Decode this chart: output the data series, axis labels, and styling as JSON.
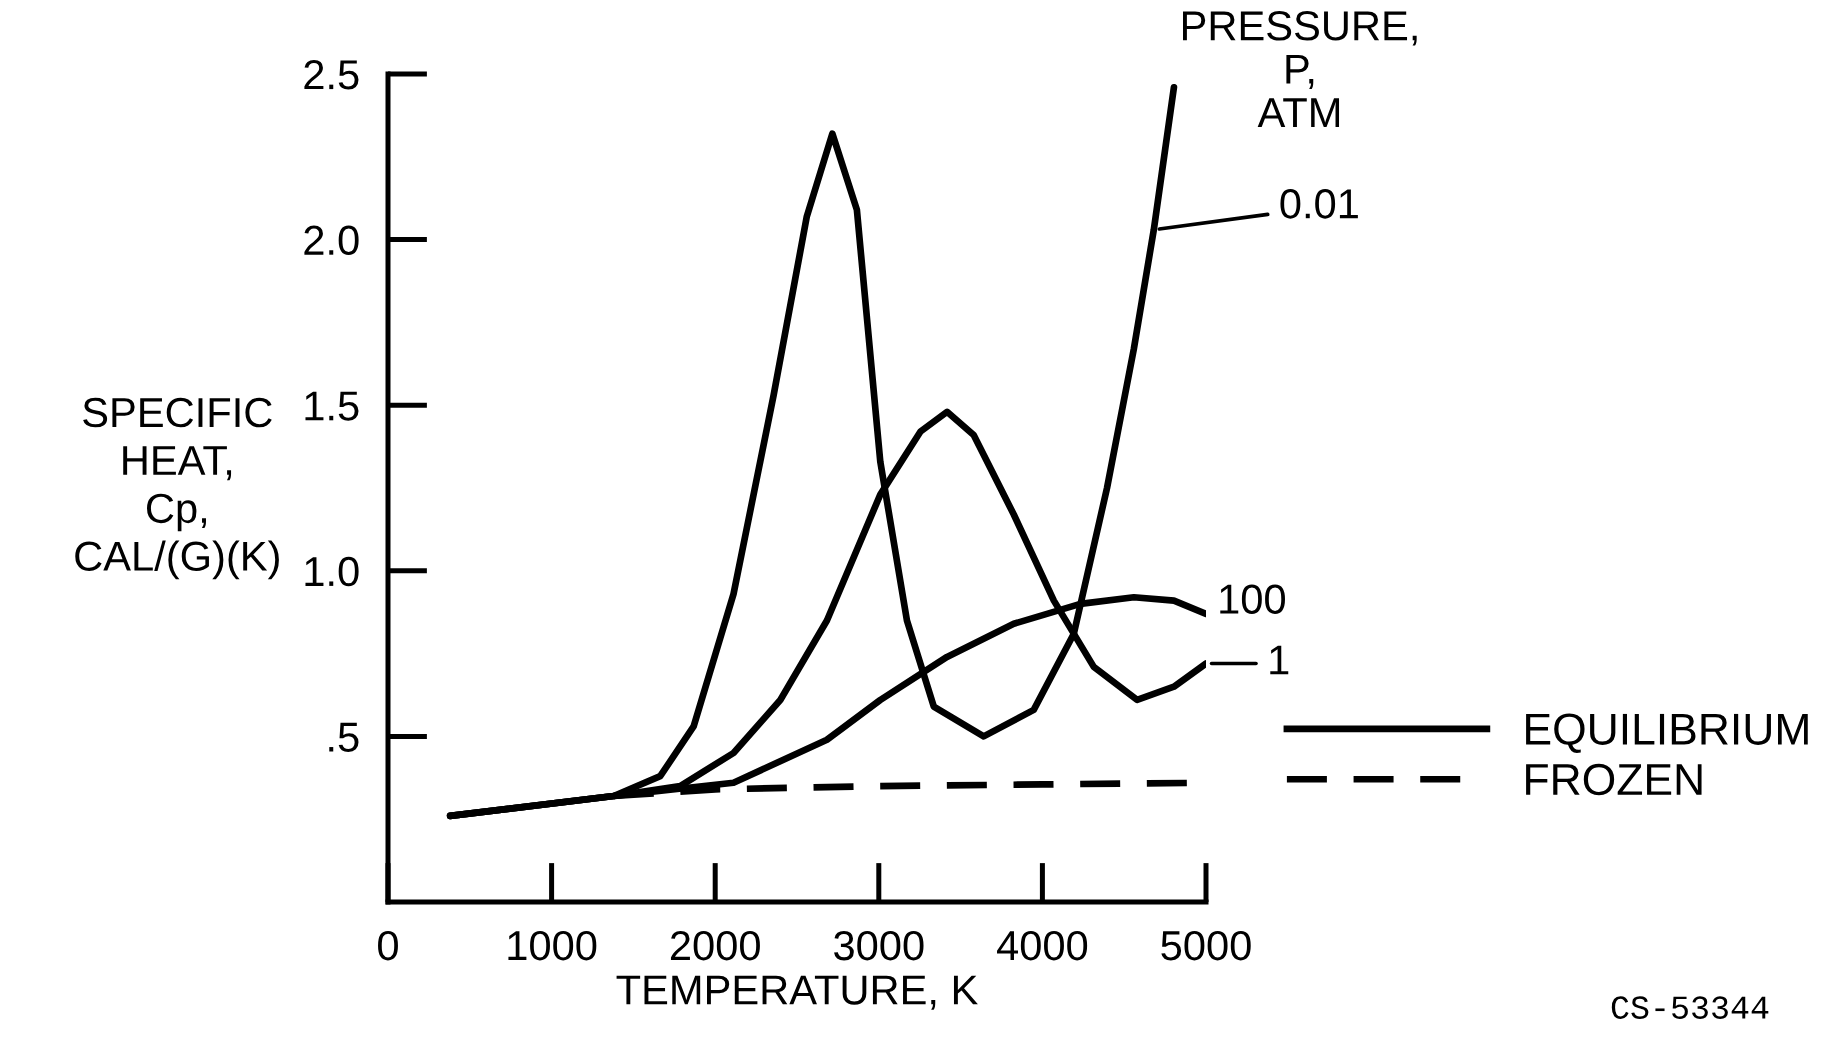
{
  "chart_data": {
    "type": "line",
    "xlabel": "TEMPERATURE, K",
    "ylabel": "SPECIFIC\nHEAT,\nCp,\nCAL/(G)(K)",
    "xlim": [
      0,
      5000
    ],
    "xticks": [
      0,
      1000,
      2000,
      3000,
      4000,
      5000
    ],
    "ylim": [
      0,
      2.5
    ],
    "yticks": [
      {
        "value": 0.5,
        "label": ".5"
      },
      {
        "value": 1.0,
        "label": "1.0"
      },
      {
        "value": 1.5,
        "label": "1.5"
      },
      {
        "value": 2.0,
        "label": "2.0"
      },
      {
        "value": 2.5,
        "label": "2.5"
      }
    ],
    "grid": false,
    "legend": "bottom right",
    "marker": "none",
    "annotations": [
      "EQUILIBRIUM",
      "PRESSURE,\nP,\nATM",
      "CS-53344"
    ],
    "series": [
      {
        "name": "0.01",
        "color": "#000000",
        "line_style": "solid",
        "x": [
          380,
          1380,
          1664,
          1868,
          2112,
          2357,
          2560,
          2716,
          2866,
          3009,
          3172,
          3336,
          3641,
          3947,
          4192,
          4395,
          4559,
          4681,
          4804
        ],
        "values": [
          0.26,
          0.32,
          0.38,
          0.53,
          0.93,
          1.53,
          2.07,
          2.32,
          2.09,
          1.33,
          0.85,
          0.59,
          0.5,
          0.58,
          0.81,
          1.25,
          1.67,
          2.03,
          2.46
        ]
      },
      {
        "name": "1",
        "color": "#000000",
        "line_style": "solid",
        "x": [
          380,
          1380,
          1786,
          2112,
          2398,
          2683,
          3009,
          3254,
          3417,
          3580,
          3825,
          4070,
          4314,
          4579,
          4804,
          5000
        ],
        "values": [
          0.26,
          0.32,
          0.35,
          0.45,
          0.61,
          0.85,
          1.23,
          1.42,
          1.48,
          1.41,
          1.17,
          0.91,
          0.71,
          0.61,
          0.65,
          0.72
        ]
      },
      {
        "name": "100",
        "color": "#000000",
        "line_style": "solid",
        "x": [
          380,
          1380,
          2112,
          2683,
          3009,
          3417,
          3825,
          4232,
          4559,
          4804,
          5000
        ],
        "values": [
          0.26,
          0.32,
          0.36,
          0.49,
          0.61,
          0.74,
          0.84,
          0.9,
          0.92,
          0.91,
          0.87
        ]
      },
      {
        "name": "FROZEN",
        "color": "#000000",
        "line_style": "dashed",
        "x": [
          1380,
          2000,
          3000,
          4000,
          5000
        ],
        "values": [
          0.32,
          0.34,
          0.35,
          0.355,
          0.36
        ]
      }
    ]
  }
}
